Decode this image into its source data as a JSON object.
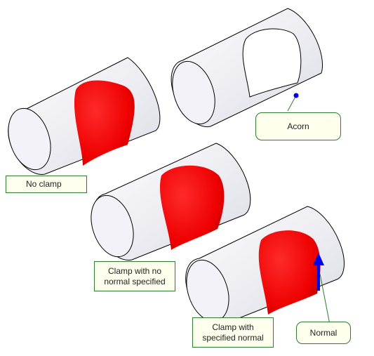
{
  "labels": {
    "no_clamp": "No clamp",
    "acorn": "Acorn",
    "clamp_no_normal_line1": "Clamp with no",
    "clamp_no_normal_line2": "normal specified",
    "clamp_specified_line1": "Clamp with",
    "clamp_specified_line2": "specified normal",
    "normal": "Normal"
  },
  "colors": {
    "fill_surface": "#ff0000",
    "cylinder_fill": "#f5f5fa",
    "edge": "#000000",
    "callout_border": "#2e7d32",
    "callout_fill": "#ffffee",
    "normal_arrow": "#0000ee",
    "acorn_point": "#0000ee"
  }
}
